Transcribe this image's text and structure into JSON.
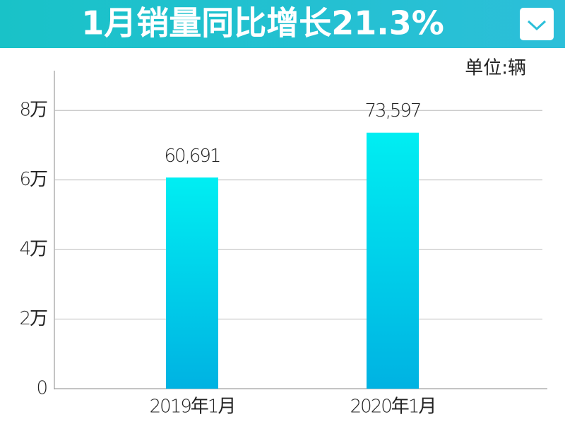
{
  "chart_data": {
    "type": "bar",
    "title": "1月销量同比增长21.3%",
    "unit_note": "单位:辆",
    "categories": [
      "2019年1月",
      "2020年1月"
    ],
    "values": [
      60691,
      73597
    ],
    "value_labels": [
      "60,691",
      "73,597"
    ],
    "gradient": [
      "#00eef2",
      "#00b2e2"
    ],
    "ylim": [
      0,
      90000
    ],
    "yticks": [
      0,
      {
        "value": 20000,
        "label": "2万"
      },
      {
        "value": 40000,
        "label": "4万"
      },
      {
        "value": 60000,
        "label": "6万"
      },
      {
        "value": 80000,
        "label": "8万"
      }
    ],
    "grid": true
  }
}
